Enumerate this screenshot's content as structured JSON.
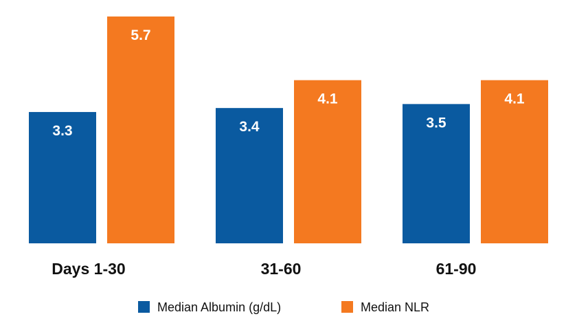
{
  "chart_data": {
    "type": "bar",
    "categories": [
      "Days 1-30",
      "31-60",
      "61-90"
    ],
    "series": [
      {
        "name": "Median Albumin (g/dL)",
        "values": [
          3.3,
          3.4,
          3.5
        ],
        "labels": [
          "3.3",
          "3.4",
          "3.5"
        ],
        "color": "#0a5aa0"
      },
      {
        "name": "Median NLR",
        "values": [
          5.7,
          4.1,
          4.1
        ],
        "labels": [
          "5.7",
          "4.1",
          "4.1"
        ],
        "color": "#f47920"
      }
    ],
    "ylim": [
      0,
      5.7
    ],
    "grid": false,
    "legend_position": "bottom-center",
    "title": "",
    "xlabel": "",
    "ylabel": ""
  }
}
